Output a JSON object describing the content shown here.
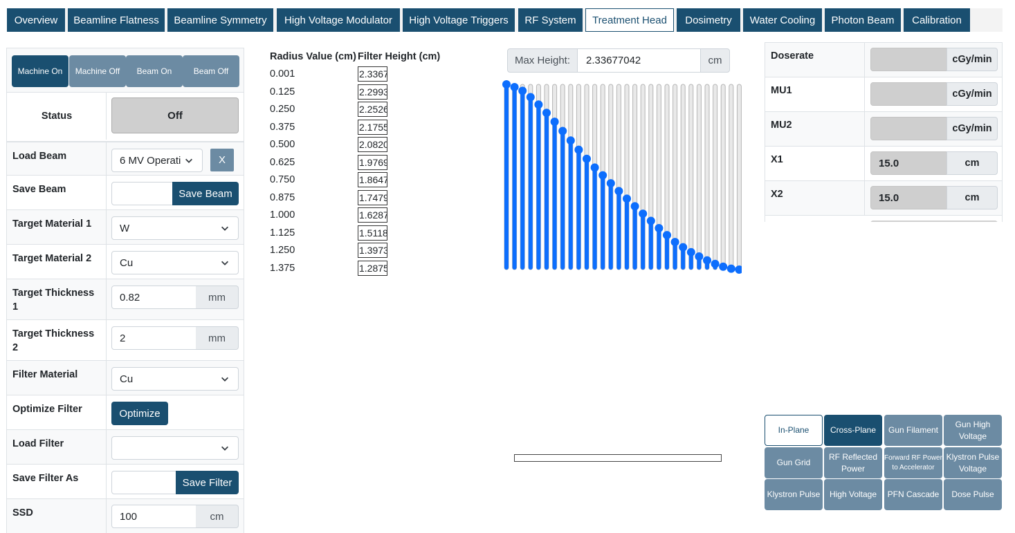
{
  "tabs": [
    {
      "label": "Overview"
    },
    {
      "label": "Beamline Flatness"
    },
    {
      "label": "Beamline Symmetry"
    },
    {
      "label": "High Voltage Modulator"
    },
    {
      "label": "High Voltage Triggers"
    },
    {
      "label": "RF System"
    },
    {
      "label": "Treatment Head",
      "active": true
    },
    {
      "label": "Dosimetry"
    },
    {
      "label": "Water Cooling"
    },
    {
      "label": "Photon Beam"
    },
    {
      "label": "Calibration"
    }
  ],
  "machine_buttons": {
    "machine_on": "Machine On",
    "machine_off": "Machine Off",
    "beam_on": "Beam On",
    "beam_off": "Beam Off"
  },
  "status": {
    "label": "Status",
    "value": "Off"
  },
  "load_beam": {
    "label": "Load Beam",
    "value": "6 MV Operati",
    "clear": "X"
  },
  "save_beam": {
    "label": "Save Beam",
    "value": "",
    "button": "Save Beam"
  },
  "target_material_1": {
    "label": "Target Material 1",
    "value": "W"
  },
  "target_material_2": {
    "label": "Target Material 2",
    "value": "Cu"
  },
  "target_thickness_1": {
    "label": "Target Thickness 1",
    "value": "0.82",
    "unit": "mm"
  },
  "target_thickness_2": {
    "label": "Target Thickness 2",
    "value": "2",
    "unit": "mm"
  },
  "filter_material": {
    "label": "Filter Material",
    "value": "Cu"
  },
  "optimize_filter": {
    "label": "Optimize Filter",
    "button": "Optimize"
  },
  "load_filter": {
    "label": "Load Filter",
    "value": ""
  },
  "save_filter": {
    "label": "Save Filter As",
    "value": "",
    "button": "Save Filter"
  },
  "ssd": {
    "label": "SSD",
    "value": "100",
    "unit": "cm"
  },
  "filter_table": {
    "headers": [
      "Radius Value (cm)",
      "Filter Height (cm)"
    ],
    "rows": [
      [
        "0.001",
        "2.3367"
      ],
      [
        "0.125",
        "2.2993"
      ],
      [
        "0.250",
        "2.2526"
      ],
      [
        "0.375",
        "2.1755"
      ],
      [
        "0.500",
        "2.0820"
      ],
      [
        "0.625",
        "1.9769"
      ],
      [
        "0.750",
        "1.8647"
      ],
      [
        "0.875",
        "1.7479"
      ],
      [
        "1.000",
        "1.6287"
      ],
      [
        "1.125",
        "1.5118"
      ],
      [
        "1.250",
        "1.3973"
      ],
      [
        "1.375",
        "1.2875"
      ]
    ]
  },
  "max_height": {
    "label": "Max Height:",
    "value": "2.33677042",
    "unit": "cm"
  },
  "slider_fill_fractions": [
    1.0,
    0.985,
    0.965,
    0.931,
    0.891,
    0.846,
    0.798,
    0.748,
    0.697,
    0.647,
    0.598,
    0.551,
    0.509,
    0.466,
    0.424,
    0.383,
    0.342,
    0.302,
    0.263,
    0.224,
    0.186,
    0.149,
    0.121,
    0.094,
    0.071,
    0.05,
    0.031,
    0.016,
    0.005,
    0.0
  ],
  "slider_colors": {
    "active": "#0d6efd",
    "track": "#e9e9e9"
  },
  "readouts": [
    {
      "label": "Doserate",
      "value": "",
      "unit": "cGy/min"
    },
    {
      "label": "MU1",
      "value": "",
      "unit": "cGy/min"
    },
    {
      "label": "MU2",
      "value": "",
      "unit": "cGy/min"
    },
    {
      "label": "X1",
      "value": "15.0",
      "unit": "cm"
    },
    {
      "label": "X2",
      "value": "15.0",
      "unit": "cm"
    }
  ],
  "plot_buttons": [
    {
      "label": "In-Plane",
      "style": "outline"
    },
    {
      "label": "Cross-Plane",
      "style": "dark"
    },
    {
      "label": "Gun Filament",
      "style": "normal"
    },
    {
      "label": "Gun High Voltage",
      "style": "normal"
    },
    {
      "label": "Gun Grid",
      "style": "normal"
    },
    {
      "label": "RF Reflected Power",
      "style": "normal"
    },
    {
      "label": "Forward RF Power to Accelerator",
      "style": "small"
    },
    {
      "label": "Klystron Pulse Voltage",
      "style": "normal"
    },
    {
      "label": "Klystron Pulse",
      "style": "normal"
    },
    {
      "label": "High Voltage",
      "style": "normal"
    },
    {
      "label": "PFN Cascade",
      "style": "normal"
    },
    {
      "label": "Dose Pulse",
      "style": "normal"
    }
  ]
}
